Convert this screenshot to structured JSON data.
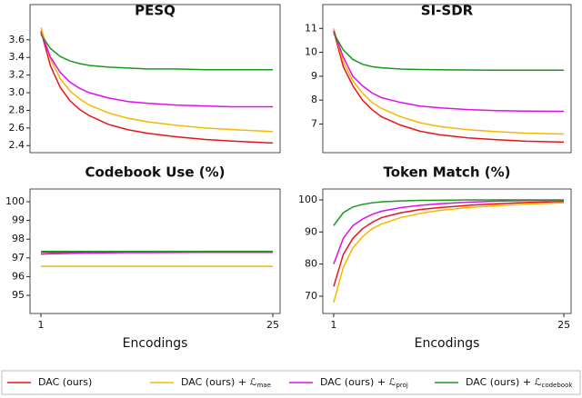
{
  "chart_data": [
    {
      "type": "line",
      "title": "PESQ",
      "x": [
        1,
        2,
        3,
        4,
        5,
        6,
        8,
        10,
        12,
        15,
        18,
        21,
        25
      ],
      "xlim": [
        -0.13,
        25.75
      ],
      "ylim": [
        2.32,
        4.0
      ],
      "yticks": [
        2.4,
        2.6,
        2.8,
        {
          "value": 3,
          "label": "3.0"
        },
        3.2,
        3.4,
        3.6
      ],
      "series": [
        {
          "name": "DAC (ours)",
          "color": "#e8141a",
          "values": [
            3.7,
            3.3,
            3.06,
            2.91,
            2.81,
            2.74,
            2.64,
            2.58,
            2.54,
            2.5,
            2.47,
            2.45,
            2.43
          ]
        },
        {
          "name": "DAC (ours) + ℒ",
          "name_sub": "mae",
          "color": "#f5b800",
          "values": [
            3.74,
            3.38,
            3.16,
            3.02,
            2.93,
            2.86,
            2.77,
            2.71,
            2.67,
            2.63,
            2.6,
            2.58,
            2.56
          ]
        },
        {
          "name": "DAC (ours) + ℒ",
          "name_sub": "proj",
          "color": "#e010e8",
          "values": [
            3.68,
            3.4,
            3.23,
            3.12,
            3.05,
            3.0,
            2.94,
            2.9,
            2.88,
            2.86,
            2.85,
            2.84,
            2.84
          ]
        },
        {
          "name": "DAC (ours) + ℒ",
          "name_sub": "codebook",
          "color": "#1a9a1a",
          "values": [
            3.66,
            3.5,
            3.41,
            3.36,
            3.33,
            3.31,
            3.29,
            3.28,
            3.27,
            3.27,
            3.26,
            3.26,
            3.26
          ]
        }
      ]
    },
    {
      "type": "line",
      "title": "SI-SDR",
      "x": [
        1,
        2,
        3,
        4,
        5,
        6,
        8,
        10,
        12,
        15,
        18,
        21,
        25
      ],
      "xlim": [
        -0.13,
        25.75
      ],
      "ylim": [
        5.8,
        12.0
      ],
      "yticks": [
        7,
        8,
        9,
        10,
        11
      ],
      "series": [
        {
          "color": "#e8141a",
          "values": [
            10.9,
            9.4,
            8.6,
            8.0,
            7.6,
            7.3,
            6.95,
            6.7,
            6.55,
            6.42,
            6.34,
            6.28,
            6.24
          ]
        },
        {
          "color": "#f5b800",
          "values": [
            11.0,
            9.6,
            8.8,
            8.3,
            7.9,
            7.65,
            7.3,
            7.05,
            6.9,
            6.76,
            6.68,
            6.62,
            6.58
          ]
        },
        {
          "color": "#e010e8",
          "values": [
            10.9,
            9.8,
            9.0,
            8.6,
            8.3,
            8.1,
            7.9,
            7.75,
            7.68,
            7.6,
            7.56,
            7.54,
            7.53
          ]
        },
        {
          "color": "#1a9a1a",
          "values": [
            10.8,
            10.1,
            9.7,
            9.5,
            9.4,
            9.35,
            9.3,
            9.28,
            9.27,
            9.26,
            9.25,
            9.25,
            9.25
          ]
        }
      ]
    },
    {
      "type": "line",
      "title": "Codebook Use (%)",
      "xlabel": "Encodings",
      "x": [
        1,
        2,
        3,
        4,
        5,
        6,
        8,
        10,
        12,
        15,
        18,
        21,
        25
      ],
      "xlim": [
        -0.13,
        25.75
      ],
      "xticks": [
        1,
        25
      ],
      "ylim": [
        94.03,
        100.68
      ],
      "yticks": [
        95,
        96,
        97,
        98,
        99,
        100
      ],
      "series": [
        {
          "color": "#e8141a",
          "values": [
            97.3,
            97.3,
            97.3,
            97.3,
            97.3,
            97.3,
            97.3,
            97.3,
            97.3,
            97.3,
            97.3,
            97.3,
            97.3
          ]
        },
        {
          "color": "#f5b800",
          "values": [
            96.55,
            96.55,
            96.55,
            96.55,
            96.55,
            96.55,
            96.55,
            96.55,
            96.55,
            96.55,
            96.55,
            96.55,
            96.55
          ]
        },
        {
          "color": "#e010e8",
          "values": [
            97.2,
            97.22,
            97.23,
            97.24,
            97.25,
            97.26,
            97.27,
            97.28,
            97.28,
            97.29,
            97.3,
            97.3,
            97.3
          ]
        },
        {
          "color": "#1a9a1a",
          "values": [
            97.35,
            97.35,
            97.35,
            97.35,
            97.35,
            97.35,
            97.35,
            97.35,
            97.35,
            97.35,
            97.35,
            97.35,
            97.35
          ]
        }
      ]
    },
    {
      "type": "line",
      "title": "Token Match (%)",
      "xlabel": "Encodings",
      "x": [
        1,
        2,
        3,
        4,
        5,
        6,
        8,
        10,
        12,
        15,
        18,
        21,
        25
      ],
      "xlim": [
        -0.13,
        25.75
      ],
      "xticks": [
        1,
        25
      ],
      "ylim": [
        64.6,
        103.4
      ],
      "yticks": [
        70,
        80,
        90,
        100
      ],
      "series": [
        {
          "color": "#e8141a",
          "values": [
            73,
            83,
            88,
            91,
            93,
            94.5,
            96,
            97,
            97.6,
            98.3,
            98.8,
            99.2,
            99.5
          ]
        },
        {
          "color": "#f5b800",
          "values": [
            68,
            79,
            85,
            88.5,
            91,
            92.5,
            94.5,
            95.8,
            96.7,
            97.6,
            98.2,
            98.7,
            99.1
          ]
        },
        {
          "color": "#e010e8",
          "values": [
            80,
            88,
            92,
            94,
            95.5,
            96.5,
            97.6,
            98.3,
            98.8,
            99.3,
            99.6,
            99.8,
            99.9
          ]
        },
        {
          "color": "#1a9a1a",
          "values": [
            92,
            96,
            97.8,
            98.6,
            99.1,
            99.4,
            99.7,
            99.85,
            99.9,
            100,
            100,
            100,
            100
          ]
        }
      ]
    }
  ]
}
